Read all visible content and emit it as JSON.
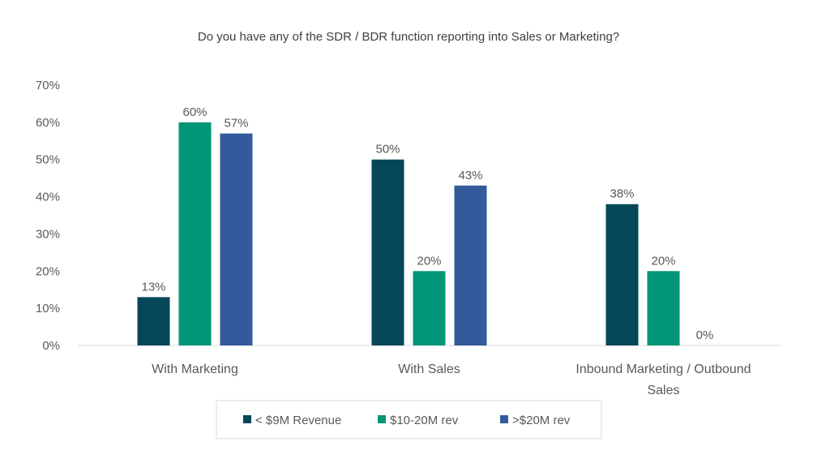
{
  "chart_data": {
    "type": "bar",
    "title": "Do you have any of the SDR / BDR function reporting into Sales or Marketing?",
    "categories": [
      "With Marketing",
      "With Sales",
      "Inbound Marketing / Outbound Sales"
    ],
    "category_lines": [
      [
        "With Marketing"
      ],
      [
        "With Sales"
      ],
      [
        "Inbound Marketing / Outbound",
        "Sales"
      ]
    ],
    "series": [
      {
        "name": "< $9M Revenue",
        "values": [
          13,
          50,
          38
        ],
        "color": "#07475a"
      },
      {
        "name": "$10-20M rev",
        "values": [
          60,
          20,
          20
        ],
        "color": "#009677"
      },
      {
        "name": ">$20M rev",
        "values": [
          57,
          43,
          0
        ],
        "color": "#335b9c"
      }
    ],
    "value_suffix": "%",
    "ylim": [
      0,
      70
    ],
    "yticks": [
      0,
      10,
      20,
      30,
      40,
      50,
      60,
      70
    ],
    "ytick_labels": [
      "0%",
      "10%",
      "20%",
      "30%",
      "40%",
      "50%",
      "60%",
      "70%"
    ],
    "grid": false,
    "legend_position": "bottom"
  }
}
